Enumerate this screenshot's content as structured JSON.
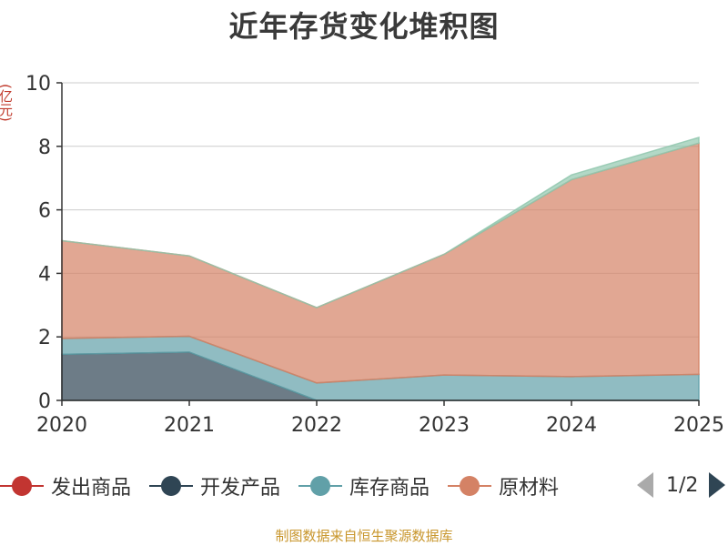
{
  "title": "近年存货变化堆积图",
  "y_unit": "(亿元)",
  "legend": {
    "items": [
      {
        "name": "发出商品",
        "color": "#c23531"
      },
      {
        "name": "开发产品",
        "color": "#2f4554"
      },
      {
        "name": "库存商品",
        "color": "#61a0a8"
      },
      {
        "name": "原材料",
        "color": "#d48265"
      }
    ],
    "page_text": "1/2"
  },
  "footer": "制图数据来自恒生聚源数据库",
  "chart_data": {
    "type": "area",
    "stacked": true,
    "title": "近年存货变化堆积图",
    "ylabel": "(亿元)",
    "x": [
      "2020",
      "2021",
      "2022",
      "2023",
      "2024",
      "2025"
    ],
    "ylim": [
      0,
      10
    ],
    "yticks": [
      0,
      2,
      4,
      6,
      8,
      10
    ],
    "grid": true,
    "legend_position": "bottom",
    "series": [
      {
        "name": "开发产品",
        "color": "#2f4554",
        "values": [
          1.45,
          1.52,
          0.0,
          0.0,
          0.0,
          0.0
        ]
      },
      {
        "name": "库存商品",
        "color": "#61a0a8",
        "values": [
          0.5,
          0.5,
          0.55,
          0.8,
          0.75,
          0.82
        ]
      },
      {
        "name": "原材料",
        "color": "#d48265",
        "values": [
          3.08,
          2.53,
          2.37,
          3.8,
          6.2,
          7.28
        ]
      },
      {
        "color": "#91c7ae",
        "values": [
          0.0,
          0.0,
          0.0,
          0.0,
          0.15,
          0.18
        ]
      }
    ]
  }
}
